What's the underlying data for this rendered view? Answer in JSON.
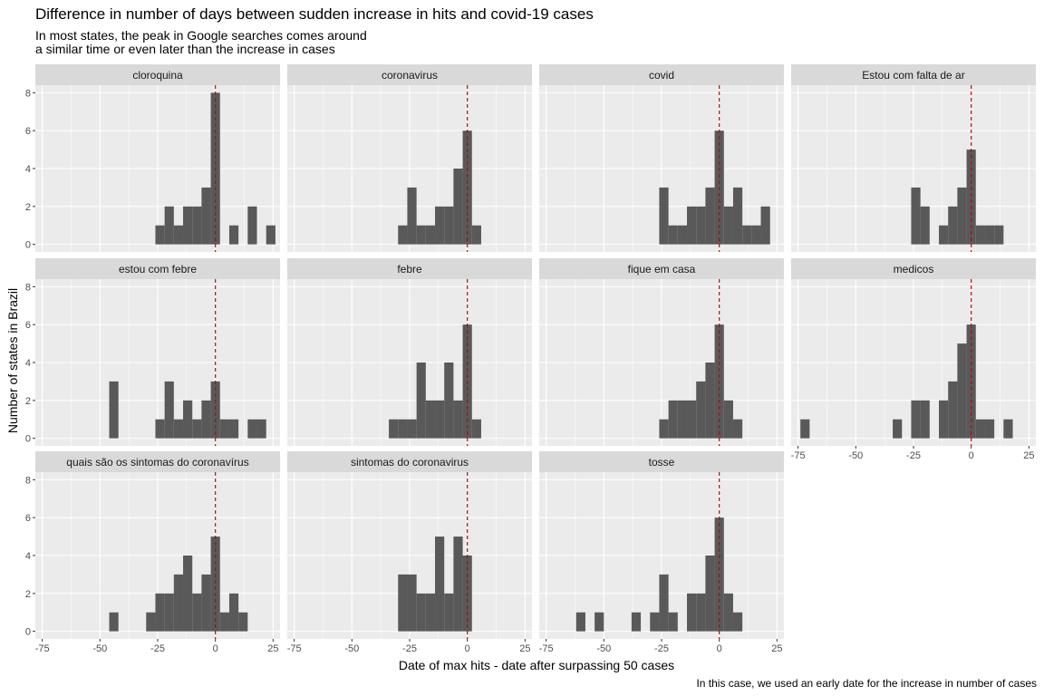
{
  "title": "Difference in number of days between sudden increase in hits and covid-19 cases",
  "subtitle_line1": "In most states, the peak in Google searches comes around",
  "subtitle_line2": "a similar time or even later than the increase in cases",
  "caption": "In this case, we used an early date for the increase in number of cases",
  "colors": {
    "panel_bg": "#ebebeb",
    "strip_bg": "#d9d9d9",
    "bar": "#595959",
    "grid": "#ffffff",
    "vline": "#cc0000"
  },
  "chart_data": {
    "type": "bar",
    "xlabel": "Date of max hits - date after surpassing 50 cases",
    "ylabel": "Number of states in Brazil",
    "xlim": [
      -78,
      28
    ],
    "ylim": [
      -0.4,
      8.4
    ],
    "x_ticks": [
      -75,
      -50,
      -25,
      0,
      25
    ],
    "y_ticks": [
      0,
      2,
      4,
      6,
      8
    ],
    "vline_x": 0,
    "vline_style": "dashed",
    "grid": true,
    "bin_width": 4,
    "panels": [
      {
        "label": "cloroquina",
        "bars": [
          [
            -24,
            1
          ],
          [
            -20,
            2
          ],
          [
            -16,
            1
          ],
          [
            -12,
            2
          ],
          [
            -8,
            2
          ],
          [
            -4,
            3
          ],
          [
            0,
            8
          ],
          [
            4,
            0
          ],
          [
            8,
            1
          ],
          [
            12,
            0
          ],
          [
            16,
            2
          ],
          [
            20,
            0
          ],
          [
            24,
            1
          ]
        ]
      },
      {
        "label": "coronavirus",
        "bars": [
          [
            -28,
            1
          ],
          [
            -24,
            3
          ],
          [
            -20,
            1
          ],
          [
            -16,
            1
          ],
          [
            -12,
            2
          ],
          [
            -8,
            2
          ],
          [
            -4,
            4
          ],
          [
            0,
            6
          ],
          [
            4,
            1
          ]
        ]
      },
      {
        "label": "covid",
        "bars": [
          [
            -24,
            3
          ],
          [
            -20,
            1
          ],
          [
            -16,
            1
          ],
          [
            -12,
            2
          ],
          [
            -8,
            2
          ],
          [
            -4,
            3
          ],
          [
            0,
            6
          ],
          [
            4,
            2
          ],
          [
            8,
            3
          ],
          [
            12,
            1
          ],
          [
            16,
            1
          ],
          [
            20,
            2
          ]
        ]
      },
      {
        "label": "Estou com falta de ar",
        "bars": [
          [
            -24,
            3
          ],
          [
            -20,
            2
          ],
          [
            -16,
            0
          ],
          [
            -12,
            1
          ],
          [
            -8,
            2
          ],
          [
            -4,
            3
          ],
          [
            0,
            5
          ],
          [
            4,
            1
          ],
          [
            8,
            1
          ],
          [
            12,
            1
          ]
        ]
      },
      {
        "label": "estou com febre",
        "bars": [
          [
            -44,
            3
          ],
          [
            -24,
            1
          ],
          [
            -20,
            3
          ],
          [
            -16,
            1
          ],
          [
            -12,
            2
          ],
          [
            -8,
            1
          ],
          [
            -4,
            2
          ],
          [
            0,
            3
          ],
          [
            4,
            1
          ],
          [
            8,
            1
          ],
          [
            12,
            0
          ],
          [
            16,
            1
          ],
          [
            20,
            1
          ]
        ]
      },
      {
        "label": "febre",
        "bars": [
          [
            -32,
            1
          ],
          [
            -28,
            1
          ],
          [
            -24,
            1
          ],
          [
            -20,
            4
          ],
          [
            -16,
            2
          ],
          [
            -12,
            2
          ],
          [
            -8,
            4
          ],
          [
            -4,
            2
          ],
          [
            0,
            6
          ],
          [
            4,
            1
          ]
        ]
      },
      {
        "label": "fique em casa",
        "bars": [
          [
            -24,
            1
          ],
          [
            -20,
            2
          ],
          [
            -16,
            2
          ],
          [
            -12,
            2
          ],
          [
            -8,
            3
          ],
          [
            -4,
            4
          ],
          [
            0,
            6
          ],
          [
            4,
            2
          ],
          [
            8,
            1
          ]
        ]
      },
      {
        "label": "medicos",
        "bars": [
          [
            -72,
            1
          ],
          [
            -32,
            1
          ],
          [
            -24,
            2
          ],
          [
            -20,
            2
          ],
          [
            -16,
            0
          ],
          [
            -12,
            2
          ],
          [
            -8,
            3
          ],
          [
            -4,
            5
          ],
          [
            0,
            6
          ],
          [
            4,
            1
          ],
          [
            8,
            1
          ],
          [
            12,
            0
          ],
          [
            16,
            1
          ]
        ]
      },
      {
        "label": "quais são os sintomas do coronavírus",
        "bars": [
          [
            -44,
            1
          ],
          [
            -28,
            1
          ],
          [
            -24,
            2
          ],
          [
            -20,
            2
          ],
          [
            -16,
            3
          ],
          [
            -12,
            4
          ],
          [
            -8,
            2
          ],
          [
            -4,
            3
          ],
          [
            0,
            5
          ],
          [
            4,
            1
          ],
          [
            8,
            2
          ],
          [
            12,
            1
          ]
        ]
      },
      {
        "label": "sintomas do coronavirus",
        "bars": [
          [
            -28,
            3
          ],
          [
            -24,
            3
          ],
          [
            -20,
            2
          ],
          [
            -16,
            2
          ],
          [
            -12,
            5
          ],
          [
            -8,
            2
          ],
          [
            -4,
            5
          ],
          [
            0,
            4
          ]
        ]
      },
      {
        "label": "tosse",
        "bars": [
          [
            -60,
            1
          ],
          [
            -52,
            1
          ],
          [
            -36,
            1
          ],
          [
            -28,
            1
          ],
          [
            -24,
            3
          ],
          [
            -20,
            1
          ],
          [
            -16,
            0
          ],
          [
            -12,
            2
          ],
          [
            -8,
            2
          ],
          [
            -4,
            4
          ],
          [
            0,
            6
          ],
          [
            4,
            2
          ],
          [
            8,
            1
          ]
        ]
      }
    ]
  }
}
